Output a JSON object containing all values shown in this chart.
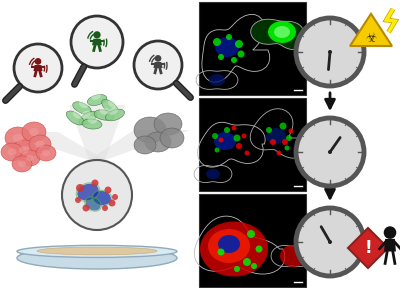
{
  "bg_color": "#ffffff",
  "left_panel": {
    "plate_color": "#b8ccd8",
    "plate_edge": "#8aaabb",
    "circle_magnify_color": "#555555",
    "human_red_color": "#7a1515",
    "human_green_color": "#1a5a1a",
    "human_gray_color": "#444444",
    "blob_red": "#e87878",
    "blob_red_dark": "#cc4444",
    "blob_green": "#88cc88",
    "blob_green_dark": "#336633",
    "sand_color": "#ddc8a0"
  },
  "right_panel": {
    "clock_outer": "#555555",
    "clock_face": "#d8d8d8",
    "clock_hand": "#222222",
    "arrow_color": "#111111",
    "hazard_yellow": "#f5cc00",
    "hazard_dark": "#b88800",
    "danger_red": "#cc2222",
    "danger_border": "#882222",
    "lightning_color": "#ffee00",
    "person_color": "#111111"
  }
}
